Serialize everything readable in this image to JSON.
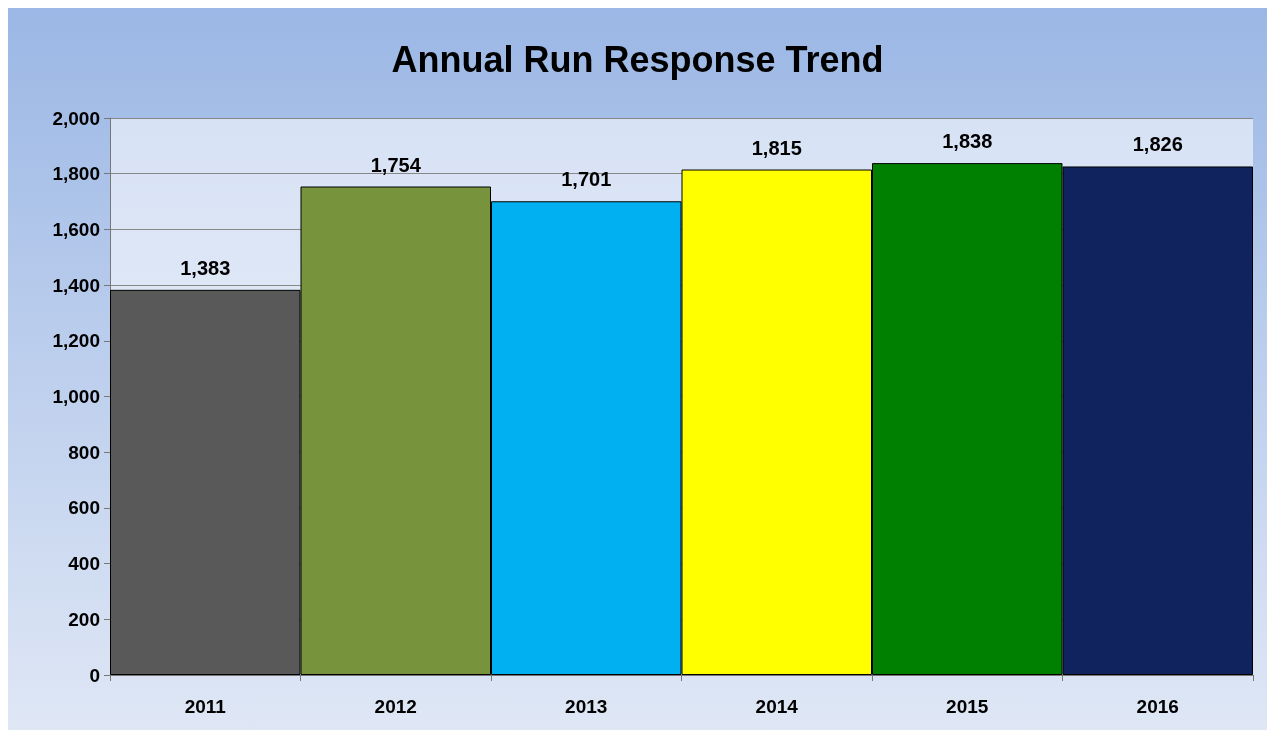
{
  "chart_data": {
    "type": "bar",
    "title": "Annual Run Response Trend",
    "categories": [
      "2011",
      "2012",
      "2013",
      "2014",
      "2015",
      "2016"
    ],
    "values": [
      1383,
      1754,
      1701,
      1815,
      1838,
      1826
    ],
    "colors": [
      "#595959",
      "#77933c",
      "#00b0f0",
      "#ffff00",
      "#008000",
      "#10235f"
    ],
    "value_labels": [
      "1,383",
      "1,754",
      "1,701",
      "1,815",
      "1,838",
      "1,826"
    ],
    "ylim": [
      0,
      2000
    ],
    "yticks": [
      {
        "value": 0,
        "label": "0"
      },
      {
        "value": 200,
        "label": "200"
      },
      {
        "value": 400,
        "label": "400"
      },
      {
        "value": 600,
        "label": "600"
      },
      {
        "value": 800,
        "label": "800"
      },
      {
        "value": 1000,
        "label": "1,000"
      },
      {
        "value": 1200,
        "label": "1,200"
      },
      {
        "value": 1400,
        "label": "1,400"
      },
      {
        "value": 1600,
        "label": "1,600"
      },
      {
        "value": 1800,
        "label": "1,800"
      },
      {
        "value": 2000,
        "label": "2,000"
      }
    ],
    "grid": true
  }
}
